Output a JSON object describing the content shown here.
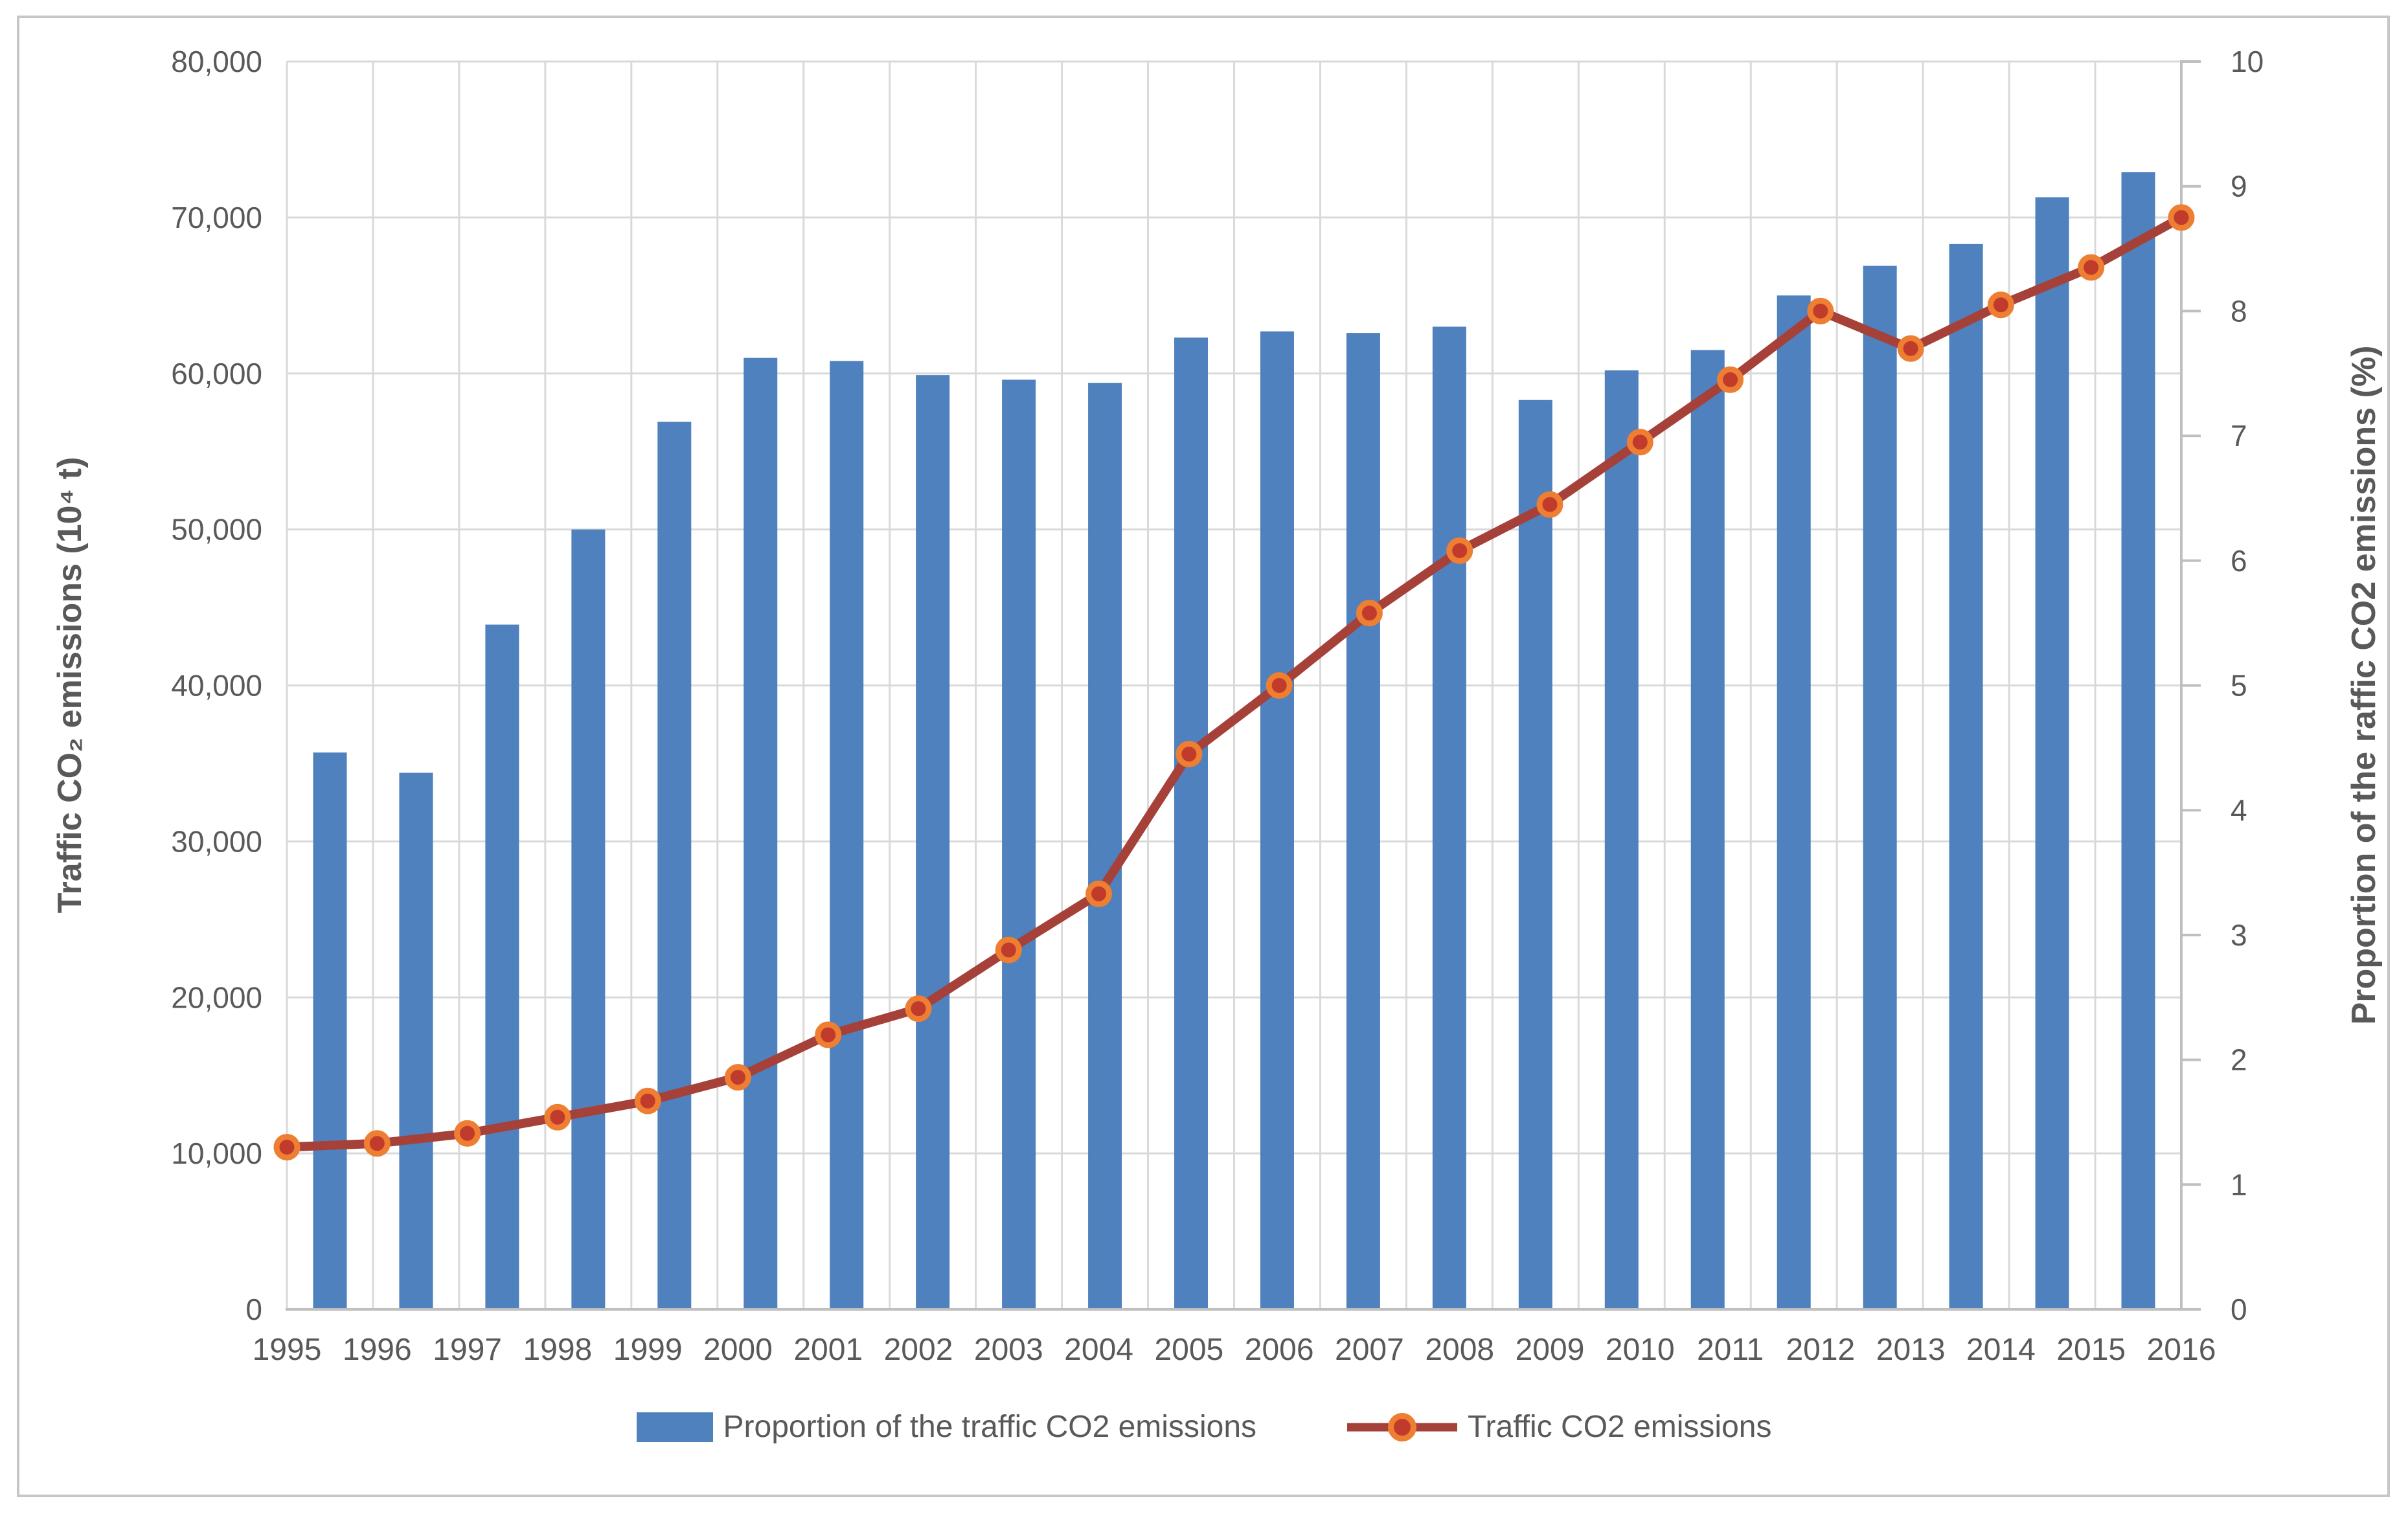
{
  "figure": {
    "background": "#ffffff",
    "border_color": "#c6c6c6",
    "text_color": "#595959",
    "gridline_color": "#d9d9d9",
    "axisline_color": "#bfbfbf"
  },
  "chart_data": {
    "type": "combo",
    "title": "",
    "grid": true,
    "categories": [
      "1995",
      "1996",
      "1997",
      "1998",
      "1999",
      "2000",
      "2001",
      "2002",
      "2003",
      "2004",
      "2005",
      "2006",
      "2007",
      "2008",
      "2009",
      "2010",
      "2011",
      "2012",
      "2013",
      "2014",
      "2015",
      "2016"
    ],
    "series": [
      {
        "name": "Proportion of the traffic CO2 emissions",
        "type": "bar",
        "axis": "left",
        "color": "#4e81bd",
        "values": [
          35700,
          34400,
          43900,
          50000,
          56900,
          61000,
          60800,
          59900,
          59600,
          59400,
          62300,
          62700,
          62600,
          63000,
          58300,
          60200,
          61500,
          65000,
          66900,
          68300,
          71300,
          72900
        ]
      },
      {
        "name": "Traffic CO2 emissions",
        "type": "line",
        "axis": "right",
        "color": "#a6413a",
        "marker_fill": "#c13b2c",
        "marker_ring": "#ee7e32",
        "values": [
          1.3,
          1.33,
          1.41,
          1.54,
          1.67,
          1.86,
          2.2,
          2.41,
          2.88,
          3.33,
          4.45,
          5.0,
          5.58,
          6.08,
          6.45,
          6.95,
          7.45,
          8.0,
          7.7,
          8.05,
          8.35,
          8.75
        ]
      }
    ],
    "left_axis": {
      "title": "Traffic CO₂ emissions (10⁴ t)",
      "min": 0,
      "max": 80000,
      "step": 10000,
      "tick_labels": [
        "0",
        "10,000",
        "20,000",
        "30,000",
        "40,000",
        "50,000",
        "60,000",
        "70,000",
        "80,000"
      ]
    },
    "right_axis": {
      "title": "Proportion of the raffic CO2 emissions (%)",
      "min": 0,
      "max": 10,
      "step": 1,
      "tick_labels": [
        "0",
        "1",
        "2",
        "3",
        "4",
        "5",
        "6",
        "7",
        "8",
        "9",
        "10"
      ]
    },
    "x_axis": {
      "tick_labels": [
        "1995",
        "1996",
        "1997",
        "1998",
        "1999",
        "2000",
        "2001",
        "2002",
        "2003",
        "2004",
        "2005",
        "2006",
        "2007",
        "2008",
        "2009",
        "2010",
        "2011",
        "2012",
        "2013",
        "2014",
        "2015",
        "2016"
      ]
    },
    "legend": {
      "position": "bottom",
      "items": [
        {
          "label": "Proportion of the traffic CO2 emissions",
          "swatch": "bar"
        },
        {
          "label": "Traffic CO2 emissions",
          "swatch": "line-marker"
        }
      ]
    }
  }
}
